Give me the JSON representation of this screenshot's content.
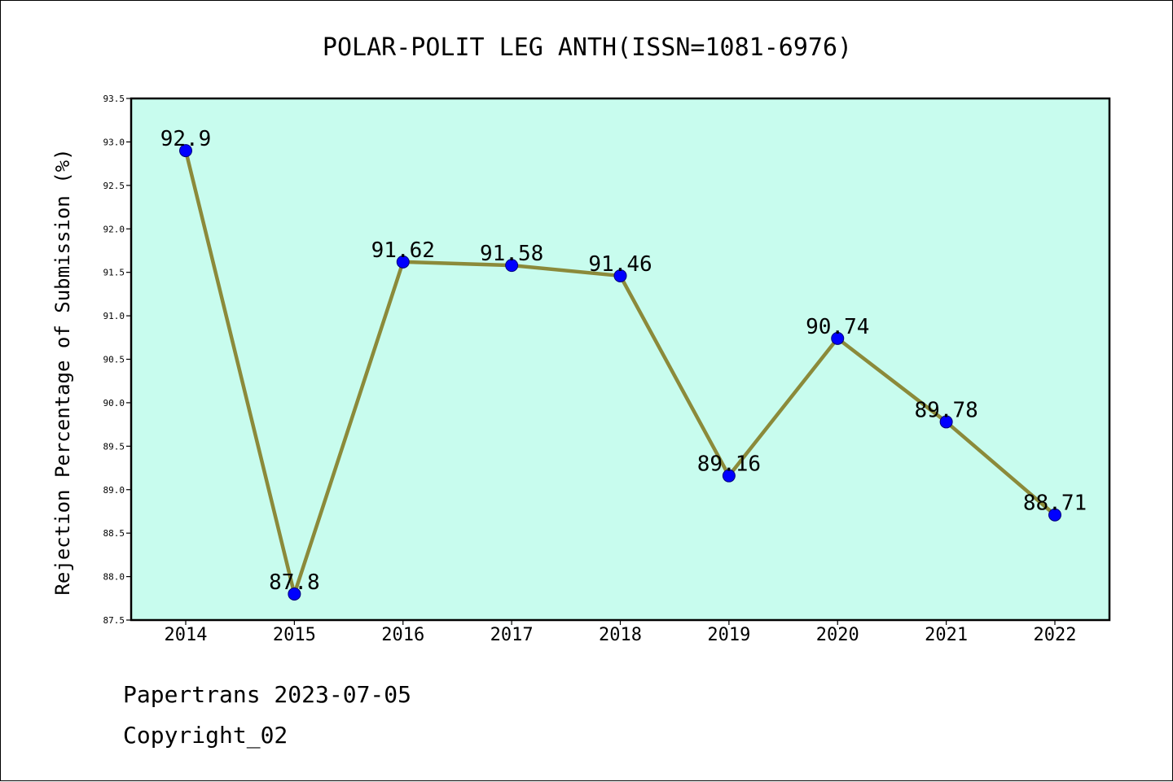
{
  "chart_data": {
    "type": "line",
    "title": "POLAR-POLIT LEG ANTH(ISSN=1081-6976)",
    "ylabel": "Rejection Percentage of Submission (%)",
    "xlabel": "",
    "categories": [
      "2014",
      "2015",
      "2016",
      "2017",
      "2018",
      "2019",
      "2020",
      "2021",
      "2022"
    ],
    "values": [
      92.9,
      87.8,
      91.62,
      91.58,
      91.46,
      89.16,
      90.74,
      89.78,
      88.71
    ],
    "data_labels": [
      "92.9",
      "87.8",
      "91.62",
      "91.58",
      "91.46",
      "89.16",
      "90.74",
      "89.78",
      "88.71"
    ],
    "ylim": [
      87.5,
      93.5
    ],
    "yticks": [
      "87.5",
      "88.0",
      "88.5",
      "89.0",
      "89.5",
      "90.0",
      "90.5",
      "91.0",
      "91.5",
      "92.0",
      "92.5",
      "93.0",
      "93.5"
    ],
    "grid": false,
    "legend": "none",
    "colors": {
      "plot_background": "#c8fcee",
      "line": "#8b8a3a",
      "marker": "#0000ff"
    }
  },
  "footer": {
    "line1": "Papertrans 2023-07-05",
    "line2": "Copyright_02"
  }
}
